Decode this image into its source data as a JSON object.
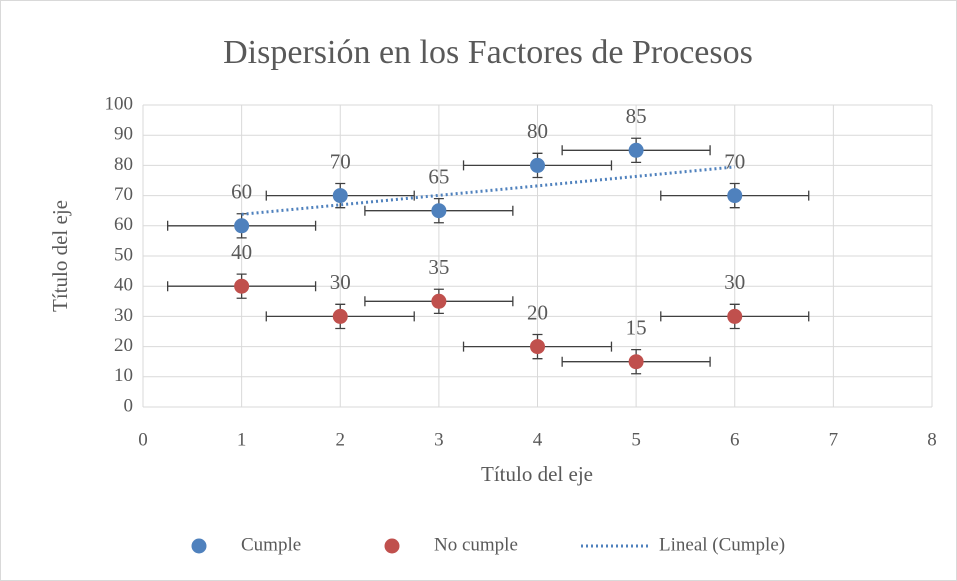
{
  "chart_data": {
    "type": "scatter",
    "title": "Dispersión en los Factores de Procesos",
    "x_label": "Título del eje",
    "y_label": "Título del eje",
    "xlim": [
      0,
      8
    ],
    "xticks": [
      0,
      1,
      2,
      3,
      4,
      5,
      6,
      7,
      8
    ],
    "ylim": [
      0,
      100
    ],
    "yticks": [
      0,
      10,
      20,
      30,
      40,
      50,
      60,
      70,
      80,
      90,
      100
    ],
    "grid": true,
    "legend": "bottom",
    "series": [
      {
        "name": "Cumple",
        "color": "#4f81bd",
        "x": [
          1,
          2,
          3,
          4,
          5,
          6
        ],
        "values": [
          60,
          70,
          65,
          80,
          85,
          70
        ],
        "errors": [
          4,
          4,
          4,
          4,
          4,
          4
        ],
        "x_errors": [
          0.75,
          0.75,
          0.75,
          0.75,
          0.75,
          0.75
        ]
      },
      {
        "name": "No cumple",
        "color": "#c0504d",
        "x": [
          1,
          2,
          3,
          4,
          5,
          6
        ],
        "values": [
          40,
          30,
          35,
          20,
          15,
          30
        ],
        "errors": [
          4,
          4,
          4,
          4,
          4,
          4
        ],
        "x_errors": [
          0.75,
          0.75,
          0.75,
          0.75,
          0.75,
          0.75
        ]
      },
      {
        "name": "Lineal (Cumple)",
        "color": "#4f81bd",
        "style": "dotted",
        "x": [
          1,
          6
        ],
        "values": [
          63.8,
          79.5
        ]
      }
    ]
  }
}
